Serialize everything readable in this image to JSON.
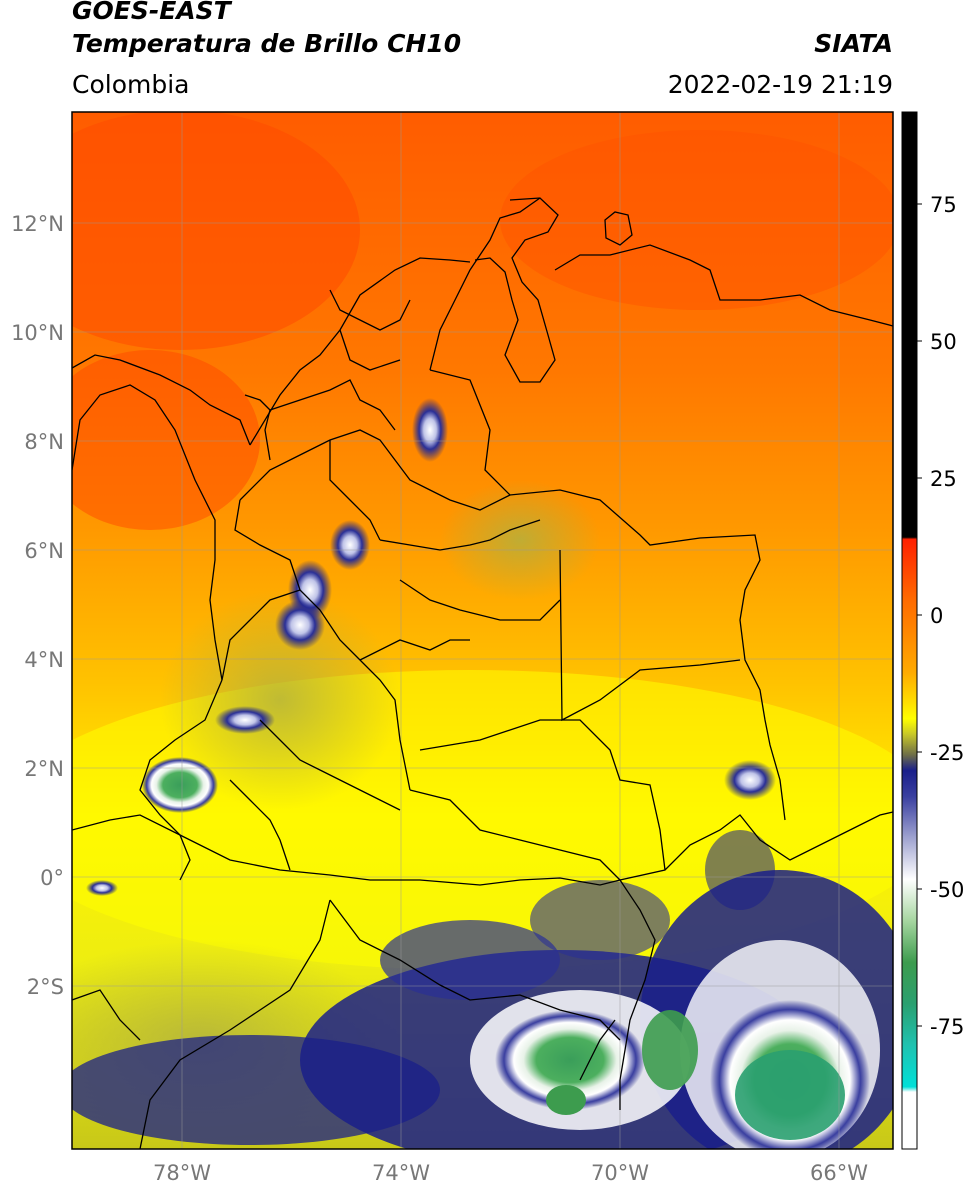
{
  "header": {
    "line1": "GOES-EAST",
    "line2": "Temperatura de Brillo CH10",
    "organization": "SIATA",
    "region": "Colombia",
    "datetime": "2022-02-19 21:19"
  },
  "map": {
    "lat_labels": [
      "12°N",
      "10°N",
      "8°N",
      "6°N",
      "4°N",
      "2°N",
      "0°",
      "2°S"
    ],
    "lon_labels": [
      "78°W",
      "74°W",
      "70°W",
      "66°W"
    ],
    "lat_values": [
      12,
      10,
      8,
      6,
      4,
      2,
      0,
      -2
    ],
    "lon_values": [
      -78,
      -74,
      -70,
      -66
    ],
    "lon_range": [
      -80,
      -65
    ],
    "lat_range": [
      -4.9,
      14
    ],
    "colors": {
      "warm": "#ff5a00",
      "orange": "#ff9a00",
      "yellow": "#ffff00",
      "cold_blue": "#1a1f8a",
      "white": "#ffffff",
      "green": "#3d9c4e",
      "cyan": "#00d6cc"
    }
  },
  "colorbar": {
    "labels": [
      "75",
      "50",
      "25",
      "0",
      "-25",
      "-50",
      "-75"
    ],
    "values": [
      75,
      50,
      25,
      0,
      -25,
      -50,
      -75
    ],
    "range": [
      -95,
      90
    ]
  }
}
